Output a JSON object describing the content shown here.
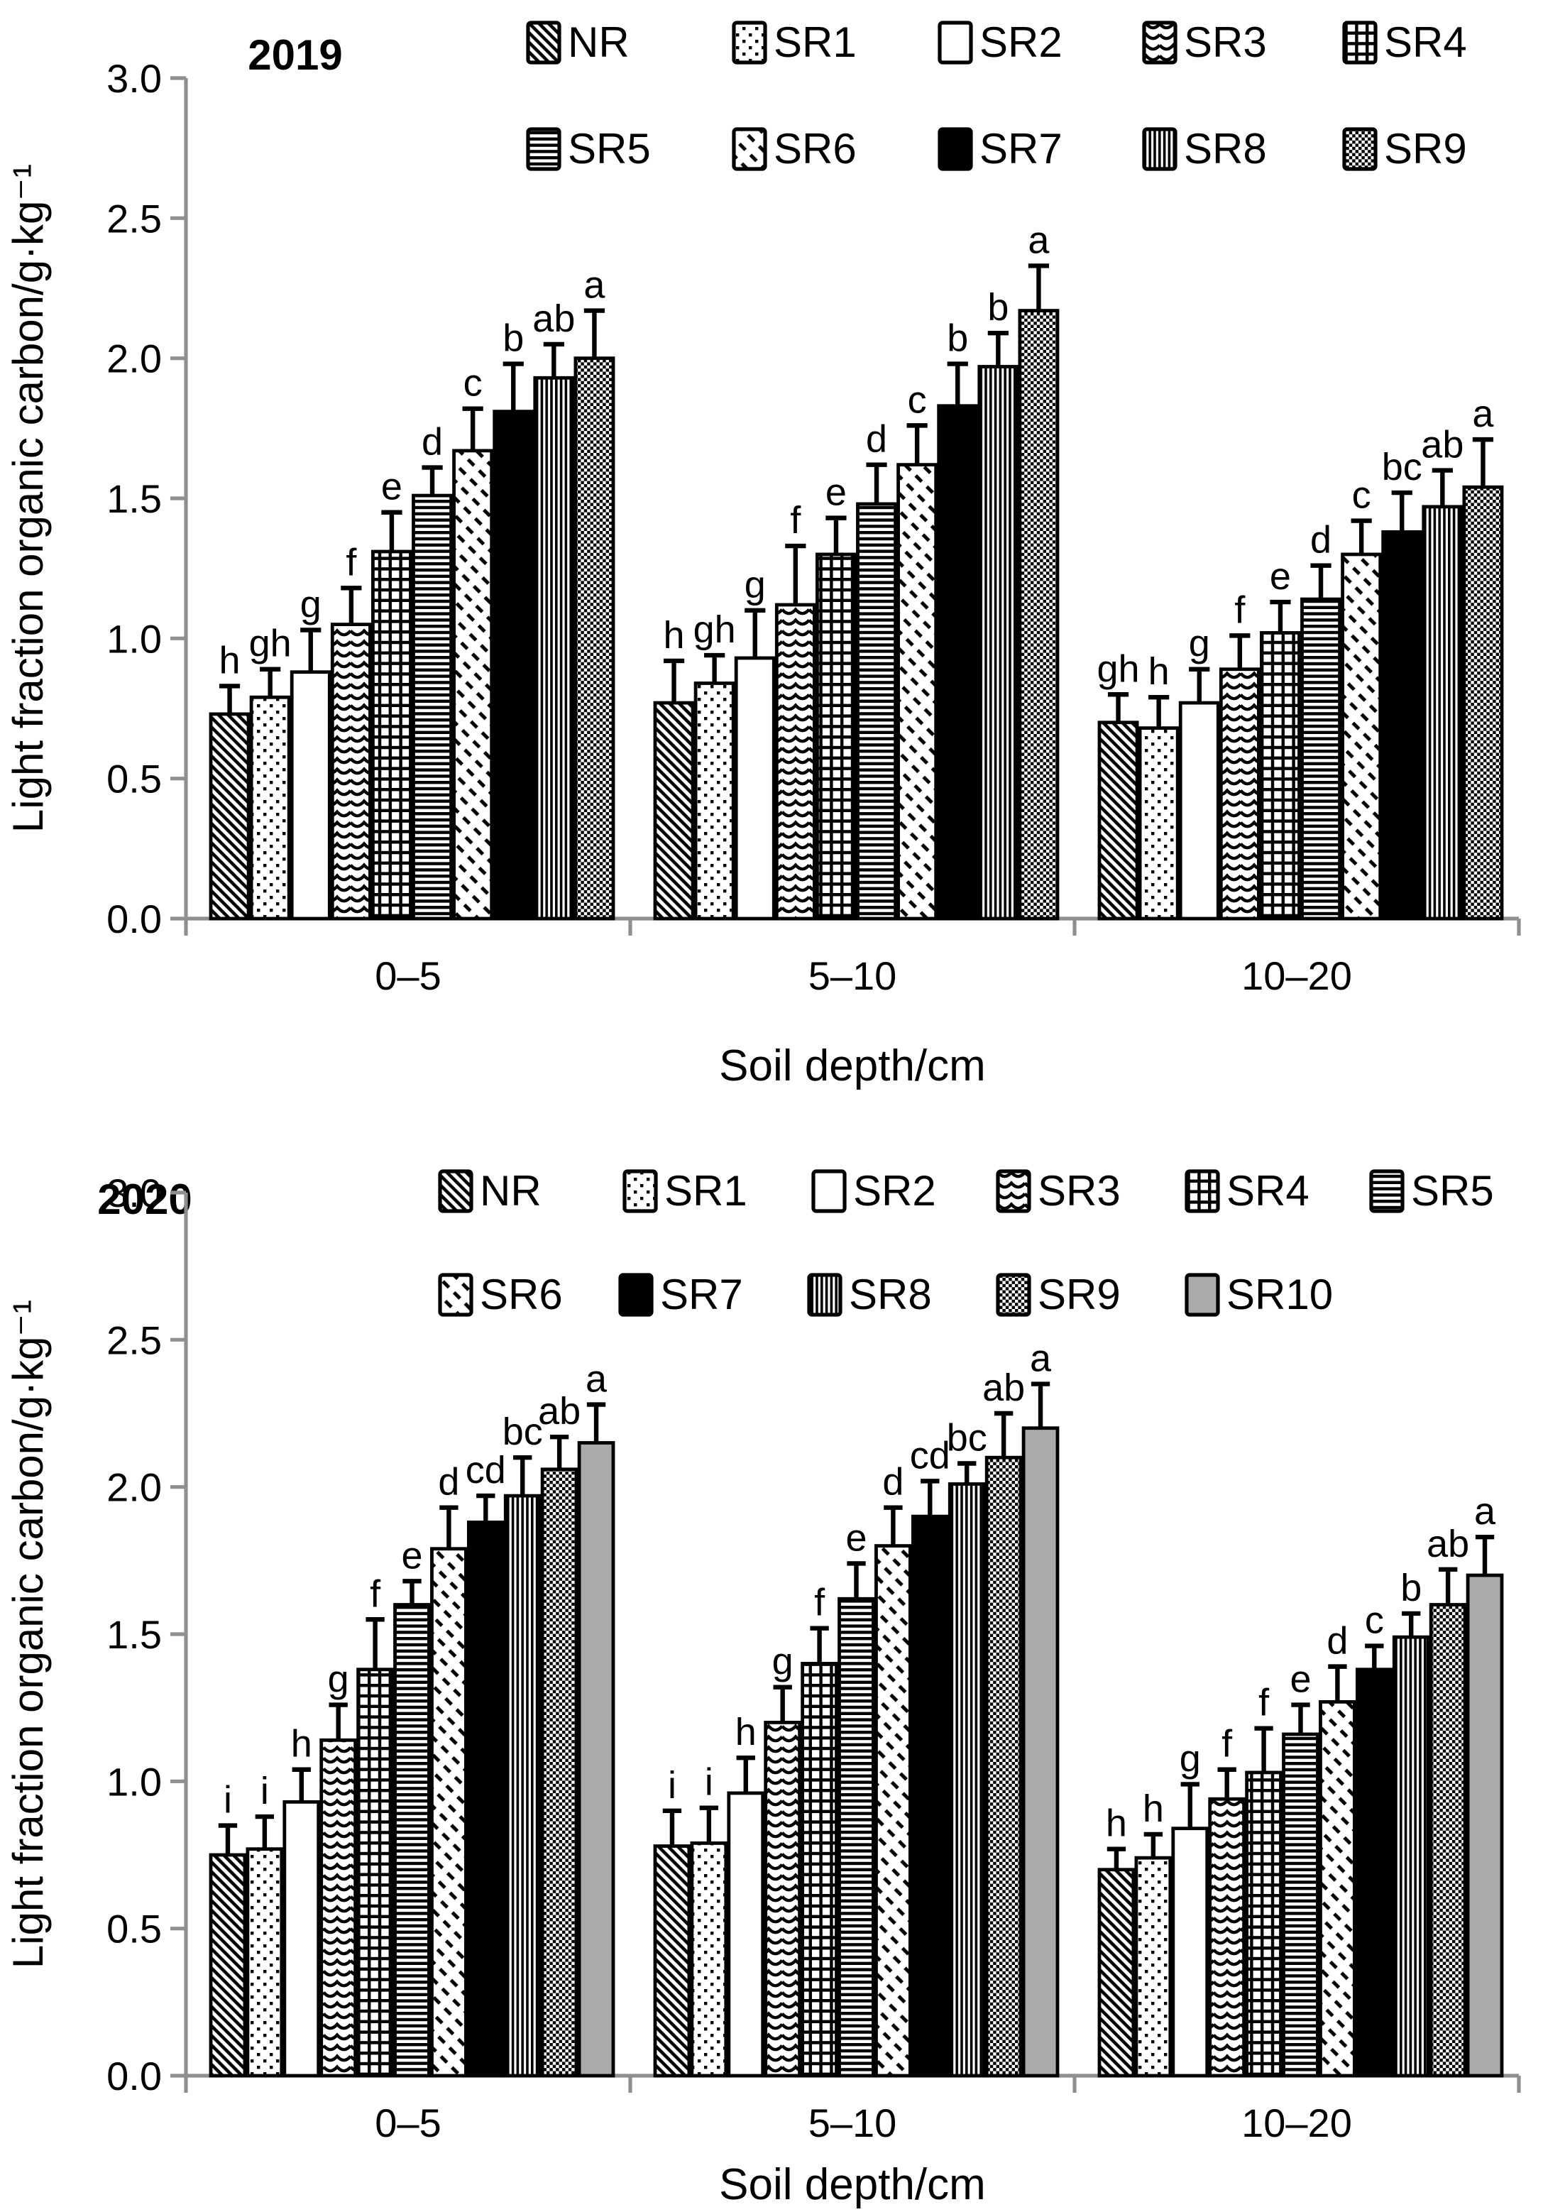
{
  "colors": {
    "background": "#ffffff",
    "axis": "#8f8f8f",
    "bar_outline": "#000000",
    "text": "#000000",
    "solid_gray": "#ababab"
  },
  "chart_data": [
    {
      "id": "chart-2019",
      "type": "bar",
      "title": "2019",
      "xlabel": "Soil depth/cm",
      "ylabel": "Light fraction organic carbon/g·kg⁻¹",
      "ylim": [
        0.0,
        3.0
      ],
      "ytick_labels": [
        "0.0",
        "0.5",
        "1.0",
        "1.5",
        "2.0",
        "2.5",
        "3.0"
      ],
      "categories": [
        "0–5",
        "5–10",
        "10–20"
      ],
      "legend_rows": [
        [
          "NR",
          "SR1",
          "SR2",
          "SR3",
          "SR4"
        ],
        [
          "SR5",
          "SR6",
          "SR7",
          "SR8",
          "SR9"
        ]
      ],
      "grid": false,
      "error_bars": true,
      "series": [
        {
          "name": "NR",
          "pattern": "diagonal-hatch",
          "values": [
            0.73,
            0.77,
            0.7
          ],
          "errors": [
            0.1,
            0.15,
            0.1
          ],
          "sig_letters": [
            "h",
            "h",
            "gh"
          ]
        },
        {
          "name": "SR1",
          "pattern": "dots",
          "values": [
            0.79,
            0.84,
            0.68
          ],
          "errors": [
            0.1,
            0.1,
            0.11
          ],
          "sig_letters": [
            "gh",
            "gh",
            "h"
          ]
        },
        {
          "name": "SR2",
          "pattern": "plain-white",
          "values": [
            0.88,
            0.93,
            0.77
          ],
          "errors": [
            0.15,
            0.17,
            0.12
          ],
          "sig_letters": [
            "g",
            "g",
            "g"
          ]
        },
        {
          "name": "SR3",
          "pattern": "wave",
          "values": [
            1.05,
            1.12,
            0.89
          ],
          "errors": [
            0.13,
            0.21,
            0.12
          ],
          "sig_letters": [
            "f",
            "f",
            "f"
          ]
        },
        {
          "name": "SR4",
          "pattern": "grid",
          "values": [
            1.31,
            1.3,
            1.02
          ],
          "errors": [
            0.14,
            0.13,
            0.11
          ],
          "sig_letters": [
            "e",
            "e",
            "e"
          ]
        },
        {
          "name": "SR5",
          "pattern": "horizontal-stripes",
          "values": [
            1.51,
            1.48,
            1.14
          ],
          "errors": [
            0.1,
            0.14,
            0.12
          ],
          "sig_letters": [
            "d",
            "d",
            "d"
          ]
        },
        {
          "name": "SR6",
          "pattern": "diagonal-dashes",
          "values": [
            1.67,
            1.62,
            1.3
          ],
          "errors": [
            0.15,
            0.14,
            0.12
          ],
          "sig_letters": [
            "c",
            "c",
            "c"
          ]
        },
        {
          "name": "SR7",
          "pattern": "solid-black",
          "values": [
            1.81,
            1.83,
            1.38
          ],
          "errors": [
            0.17,
            0.15,
            0.14
          ],
          "sig_letters": [
            "b",
            "b",
            "bc"
          ]
        },
        {
          "name": "SR8",
          "pattern": "vertical-stripes",
          "values": [
            1.93,
            1.97,
            1.47
          ],
          "errors": [
            0.12,
            0.12,
            0.13
          ],
          "sig_letters": [
            "ab",
            "b",
            "ab"
          ]
        },
        {
          "name": "SR9",
          "pattern": "checkerboard",
          "values": [
            2.0,
            2.17,
            1.54
          ],
          "errors": [
            0.17,
            0.16,
            0.17
          ],
          "sig_letters": [
            "a",
            "a",
            "a"
          ]
        }
      ]
    },
    {
      "id": "chart-2020",
      "type": "bar",
      "title": "2020",
      "xlabel": "Soil depth/cm",
      "ylabel": "Light fraction organic carbon/g·kg⁻¹",
      "ylim": [
        0.0,
        3.0
      ],
      "ytick_labels": [
        "0.0",
        "0.5",
        "1.0",
        "1.5",
        "2.0",
        "2.5",
        "3.0"
      ],
      "categories": [
        "0–5",
        "5–10",
        "10–20"
      ],
      "legend_rows": [
        [
          "NR",
          "SR1",
          "SR2",
          "SR3",
          "SR4",
          "SR5"
        ],
        [
          "SR6",
          "SR7",
          "SR8",
          "SR9",
          "SR10"
        ]
      ],
      "grid": false,
      "error_bars": true,
      "series": [
        {
          "name": "NR",
          "pattern": "diagonal-hatch",
          "values": [
            0.75,
            0.78,
            0.7
          ],
          "errors": [
            0.1,
            0.12,
            0.07
          ],
          "sig_letters": [
            "i",
            "i",
            "h"
          ]
        },
        {
          "name": "SR1",
          "pattern": "dots",
          "values": [
            0.77,
            0.79,
            0.74
          ],
          "errors": [
            0.11,
            0.12,
            0.08
          ],
          "sig_letters": [
            "i",
            "i",
            "h"
          ]
        },
        {
          "name": "SR2",
          "pattern": "plain-white",
          "values": [
            0.93,
            0.96,
            0.84
          ],
          "errors": [
            0.11,
            0.12,
            0.15
          ],
          "sig_letters": [
            "h",
            "h",
            "g"
          ]
        },
        {
          "name": "SR3",
          "pattern": "wave",
          "values": [
            1.14,
            1.2,
            0.94
          ],
          "errors": [
            0.12,
            0.12,
            0.1
          ],
          "sig_letters": [
            "g",
            "g",
            "f"
          ]
        },
        {
          "name": "SR4",
          "pattern": "grid",
          "values": [
            1.38,
            1.4,
            1.03
          ],
          "errors": [
            0.17,
            0.12,
            0.15
          ],
          "sig_letters": [
            "f",
            "f",
            "f"
          ]
        },
        {
          "name": "SR5",
          "pattern": "horizontal-stripes",
          "values": [
            1.6,
            1.62,
            1.16
          ],
          "errors": [
            0.08,
            0.12,
            0.1
          ],
          "sig_letters": [
            "e",
            "e",
            "e"
          ]
        },
        {
          "name": "SR6",
          "pattern": "diagonal-dashes",
          "values": [
            1.79,
            1.8,
            1.27
          ],
          "errors": [
            0.14,
            0.13,
            0.12
          ],
          "sig_letters": [
            "d",
            "d",
            "d"
          ]
        },
        {
          "name": "SR7",
          "pattern": "solid-black",
          "values": [
            1.88,
            1.9,
            1.38
          ],
          "errors": [
            0.09,
            0.12,
            0.08
          ],
          "sig_letters": [
            "cd",
            "cd",
            "c"
          ]
        },
        {
          "name": "SR8",
          "pattern": "vertical-stripes",
          "values": [
            1.97,
            2.01,
            1.49
          ],
          "errors": [
            0.13,
            0.07,
            0.08
          ],
          "sig_letters": [
            "bc",
            "bc",
            "b"
          ]
        },
        {
          "name": "SR9",
          "pattern": "checkerboard",
          "values": [
            2.06,
            2.1,
            1.6
          ],
          "errors": [
            0.11,
            0.15,
            0.12
          ],
          "sig_letters": [
            "ab",
            "ab",
            "ab"
          ]
        },
        {
          "name": "SR10",
          "pattern": "solid-gray",
          "values": [
            2.15,
            2.2,
            1.7
          ],
          "errors": [
            0.13,
            0.15,
            0.13
          ],
          "sig_letters": [
            "a",
            "a",
            "a"
          ]
        }
      ]
    }
  ]
}
